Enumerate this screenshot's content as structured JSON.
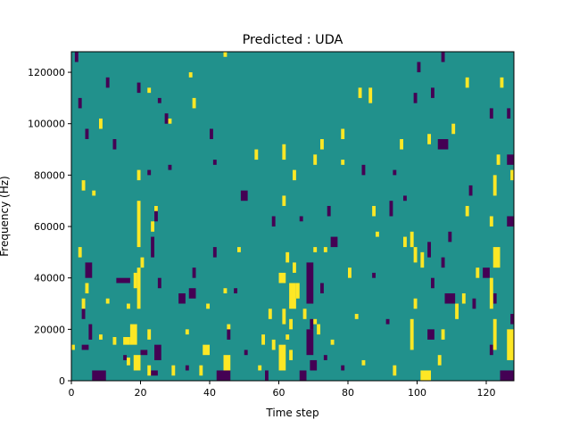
{
  "chart_data": {
    "type": "heatmap",
    "title": "Predicted : UDA",
    "xlabel": "Time step",
    "ylabel": "Frequency (Hz)",
    "xlim": [
      0,
      128
    ],
    "ylim": [
      0,
      128000
    ],
    "xticks": [
      0,
      20,
      40,
      60,
      80,
      100,
      120
    ],
    "yticks": [
      0,
      20000,
      40000,
      60000,
      80000,
      100000,
      120000
    ],
    "ytick_labels": [
      "0",
      "20000",
      "40000",
      "60000",
      "80000",
      "100000",
      "120000"
    ],
    "grid": false,
    "colormap": {
      "low": "#440154",
      "mid": "#21918c",
      "high": "#fde725"
    },
    "background_value": "mid",
    "bins": {
      "time_steps": 128,
      "frequency_bins": 128,
      "bin_hz": 1000
    },
    "note": "cells list [time_step_start, time_step_end, freq_hz_start, freq_hz_end]; all other cells are the mid (teal) class",
    "high_cells": [
      [
        17,
        19,
        14000,
        22000
      ],
      [
        18,
        20,
        4000,
        10000
      ],
      [
        19,
        20,
        28000,
        44000
      ],
      [
        19,
        20,
        52000,
        70000
      ],
      [
        18,
        19,
        36000,
        42000
      ],
      [
        20,
        21,
        44000,
        48000
      ],
      [
        22,
        23,
        2000,
        6000
      ],
      [
        22,
        23,
        16000,
        20000
      ],
      [
        16,
        17,
        6000,
        9000
      ],
      [
        15,
        17,
        14000,
        17000
      ],
      [
        12,
        13,
        14000,
        17000
      ],
      [
        10,
        11,
        30000,
        32000
      ],
      [
        16,
        17,
        28000,
        30000
      ],
      [
        19,
        20,
        78000,
        82000
      ],
      [
        23,
        24,
        58000,
        62000
      ],
      [
        24,
        25,
        66000,
        68000
      ],
      [
        29,
        30,
        2000,
        6000
      ],
      [
        33,
        34,
        18000,
        20000
      ],
      [
        38,
        40,
        10000,
        14000
      ],
      [
        39,
        40,
        28000,
        30000
      ],
      [
        37,
        38,
        2000,
        6000
      ],
      [
        44,
        46,
        4000,
        10000
      ],
      [
        45,
        46,
        20000,
        22000
      ],
      [
        44,
        45,
        34000,
        36000
      ],
      [
        48,
        49,
        50000,
        52000
      ],
      [
        54,
        55,
        4000,
        6000
      ],
      [
        55,
        56,
        14000,
        18000
      ],
      [
        57,
        58,
        24000,
        28000
      ],
      [
        58,
        59,
        12000,
        16000
      ],
      [
        60,
        62,
        4000,
        14000
      ],
      [
        61,
        62,
        22000,
        28000
      ],
      [
        60,
        62,
        38000,
        42000
      ],
      [
        62,
        63,
        16000,
        18000
      ],
      [
        63,
        64,
        8000,
        12000
      ],
      [
        63,
        65,
        28000,
        38000
      ],
      [
        62,
        63,
        46000,
        50000
      ],
      [
        65,
        66,
        32000,
        38000
      ],
      [
        63,
        64,
        20000,
        24000
      ],
      [
        64,
        65,
        42000,
        46000
      ],
      [
        67,
        68,
        24000,
        28000
      ],
      [
        70,
        71,
        22000,
        24000
      ],
      [
        70,
        71,
        50000,
        52000
      ],
      [
        61,
        62,
        68000,
        72000
      ],
      [
        64,
        65,
        78000,
        82000
      ],
      [
        70,
        71,
        84000,
        88000
      ],
      [
        71,
        72,
        18000,
        22000
      ],
      [
        73,
        74,
        50000,
        52000
      ],
      [
        75,
        76,
        14000,
        16000
      ],
      [
        78,
        79,
        84000,
        86000
      ],
      [
        80,
        81,
        40000,
        44000
      ],
      [
        82,
        83,
        24000,
        26000
      ],
      [
        84,
        85,
        6000,
        8000
      ],
      [
        87,
        88,
        64000,
        68000
      ],
      [
        88,
        89,
        56000,
        58000
      ],
      [
        93,
        94,
        2000,
        6000
      ],
      [
        96,
        97,
        52000,
        56000
      ],
      [
        98,
        99,
        12000,
        24000
      ],
      [
        99,
        100,
        28000,
        32000
      ],
      [
        99,
        100,
        46000,
        52000
      ],
      [
        101,
        104,
        0,
        4000
      ],
      [
        101,
        102,
        44000,
        50000
      ],
      [
        98,
        99,
        52000,
        58000
      ],
      [
        106,
        107,
        6000,
        10000
      ],
      [
        107,
        108,
        16000,
        20000
      ],
      [
        111,
        112,
        24000,
        30000
      ],
      [
        113,
        114,
        30000,
        34000
      ],
      [
        114,
        115,
        64000,
        68000
      ],
      [
        117,
        118,
        40000,
        44000
      ],
      [
        121,
        122,
        28000,
        40000
      ],
      [
        122,
        123,
        12000,
        24000
      ],
      [
        122,
        124,
        44000,
        52000
      ],
      [
        121,
        122,
        60000,
        64000
      ],
      [
        122,
        123,
        72000,
        80000
      ],
      [
        123,
        124,
        84000,
        88000
      ],
      [
        127,
        128,
        78000,
        82000
      ],
      [
        126,
        128,
        8000,
        20000
      ],
      [
        114,
        115,
        114000,
        118000
      ],
      [
        110,
        111,
        96000,
        100000
      ],
      [
        124,
        125,
        114000,
        118000
      ],
      [
        44,
        45,
        126000,
        128000
      ],
      [
        35,
        36,
        106000,
        110000
      ],
      [
        34,
        35,
        118000,
        120000
      ],
      [
        28,
        29,
        100000,
        102000
      ],
      [
        22,
        23,
        112000,
        114000
      ],
      [
        8,
        9,
        98000,
        102000
      ],
      [
        3,
        4,
        74000,
        78000
      ],
      [
        6,
        7,
        72000,
        74000
      ],
      [
        2,
        3,
        48000,
        52000
      ],
      [
        4,
        5,
        34000,
        38000
      ],
      [
        3,
        4,
        28000,
        32000
      ],
      [
        0,
        1,
        12000,
        14000
      ],
      [
        8,
        9,
        16000,
        18000
      ],
      [
        53,
        54,
        86000,
        90000
      ],
      [
        61,
        62,
        86000,
        92000
      ],
      [
        72,
        73,
        90000,
        94000
      ],
      [
        78,
        79,
        94000,
        98000
      ],
      [
        83,
        84,
        110000,
        114000
      ],
      [
        86,
        87,
        108000,
        114000
      ],
      [
        95,
        96,
        90000,
        94000
      ],
      [
        103,
        104,
        92000,
        96000
      ]
    ],
    "low_cells": [
      [
        6,
        10,
        0,
        4000
      ],
      [
        3,
        5,
        12000,
        14000
      ],
      [
        3,
        4,
        24000,
        28000
      ],
      [
        4,
        6,
        40000,
        46000
      ],
      [
        5,
        6,
        16000,
        22000
      ],
      [
        13,
        17,
        38000,
        40000
      ],
      [
        15,
        16,
        8000,
        10000
      ],
      [
        20,
        22,
        10000,
        12000
      ],
      [
        23,
        25,
        2000,
        4000
      ],
      [
        24,
        26,
        8000,
        14000
      ],
      [
        23,
        24,
        48000,
        56000
      ],
      [
        24,
        25,
        62000,
        68000
      ],
      [
        25,
        26,
        36000,
        40000
      ],
      [
        31,
        33,
        30000,
        34000
      ],
      [
        33,
        34,
        4000,
        6000
      ],
      [
        35,
        36,
        40000,
        44000
      ],
      [
        42,
        46,
        0,
        4000
      ],
      [
        45,
        46,
        16000,
        20000
      ],
      [
        47,
        48,
        34000,
        36000
      ],
      [
        50,
        51,
        10000,
        12000
      ],
      [
        56,
        57,
        0,
        4000
      ],
      [
        66,
        68,
        0,
        4000
      ],
      [
        68,
        70,
        10000,
        20000
      ],
      [
        69,
        71,
        4000,
        8000
      ],
      [
        68,
        70,
        30000,
        46000
      ],
      [
        69,
        70,
        20000,
        24000
      ],
      [
        72,
        73,
        34000,
        38000
      ],
      [
        73,
        74,
        8000,
        10000
      ],
      [
        66,
        67,
        62000,
        64000
      ],
      [
        75,
        77,
        52000,
        56000
      ],
      [
        78,
        79,
        4000,
        6000
      ],
      [
        87,
        88,
        40000,
        42000
      ],
      [
        91,
        92,
        22000,
        24000
      ],
      [
        92,
        93,
        64000,
        70000
      ],
      [
        93,
        94,
        80000,
        82000
      ],
      [
        96,
        97,
        70000,
        72000
      ],
      [
        103,
        105,
        16000,
        20000
      ],
      [
        103,
        104,
        48000,
        54000
      ],
      [
        104,
        105,
        36000,
        40000
      ],
      [
        107,
        108,
        44000,
        48000
      ],
      [
        108,
        111,
        30000,
        34000
      ],
      [
        109,
        110,
        54000,
        58000
      ],
      [
        116,
        117,
        28000,
        32000
      ],
      [
        119,
        121,
        40000,
        44000
      ],
      [
        121,
        122,
        10000,
        14000
      ],
      [
        122,
        123,
        30000,
        34000
      ],
      [
        124,
        128,
        0,
        4000
      ],
      [
        126,
        128,
        60000,
        64000
      ],
      [
        126,
        128,
        84000,
        88000
      ],
      [
        127,
        128,
        22000,
        26000
      ],
      [
        106,
        109,
        90000,
        94000
      ],
      [
        104,
        105,
        110000,
        114000
      ],
      [
        115,
        116,
        72000,
        76000
      ],
      [
        99,
        100,
        108000,
        112000
      ],
      [
        84,
        85,
        80000,
        84000
      ],
      [
        74,
        75,
        64000,
        68000
      ],
      [
        58,
        59,
        60000,
        64000
      ],
      [
        41,
        42,
        48000,
        52000
      ],
      [
        41,
        42,
        84000,
        86000
      ],
      [
        40,
        41,
        94000,
        98000
      ],
      [
        27,
        28,
        100000,
        104000
      ],
      [
        25,
        26,
        108000,
        110000
      ],
      [
        19,
        20,
        112000,
        116000
      ],
      [
        10,
        11,
        114000,
        118000
      ],
      [
        1,
        2,
        124000,
        128000
      ],
      [
        100,
        101,
        120000,
        124000
      ],
      [
        107,
        108,
        124000,
        128000
      ],
      [
        121,
        122,
        102000,
        106000
      ],
      [
        126,
        127,
        102000,
        106000
      ],
      [
        2,
        3,
        106000,
        110000
      ],
      [
        4,
        5,
        94000,
        98000
      ],
      [
        12,
        13,
        90000,
        94000
      ],
      [
        34,
        36,
        32000,
        36000
      ],
      [
        22,
        23,
        80000,
        82000
      ],
      [
        28,
        29,
        82000,
        84000
      ],
      [
        49,
        51,
        70000,
        74000
      ]
    ]
  }
}
